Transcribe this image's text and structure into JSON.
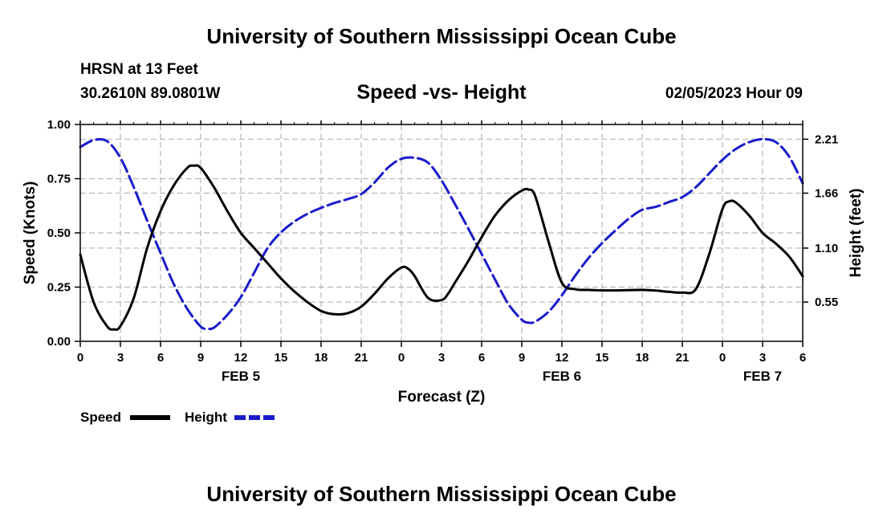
{
  "page": {
    "title_top": "University of Southern Mississippi Ocean Cube",
    "title_bottom": "University of Southern Mississippi Ocean Cube",
    "station_line1": "HRSN at 13 Feet",
    "station_line2": "30.2610N  89.0801W",
    "chart_title": "Speed -vs- Height",
    "timestamp": "02/05/2023 Hour 09"
  },
  "chart_data": {
    "type": "line",
    "title": "Speed -vs- Height",
    "xlabel": "Forecast (Z)",
    "ylabel": "Speed (Knots)",
    "y2label": "Height (feet)",
    "xlim": [
      0,
      54
    ],
    "ylim": [
      0,
      1
    ],
    "y2lim": [
      0.15,
      2.36
    ],
    "x_tick_values": [
      0,
      3,
      6,
      9,
      12,
      15,
      18,
      21,
      24,
      27,
      30,
      33,
      36,
      39,
      42,
      45,
      48,
      51,
      54
    ],
    "x_tick_labels": [
      "0",
      "3",
      "6",
      "9",
      "12",
      "15",
      "18",
      "21",
      "0",
      "3",
      "6",
      "9",
      "12",
      "15",
      "18",
      "21",
      "0",
      "3",
      "6"
    ],
    "date_labels": [
      {
        "x": 12,
        "label": "FEB 5"
      },
      {
        "x": 36,
        "label": "FEB 6"
      },
      {
        "x": 51,
        "label": "FEB 7"
      }
    ],
    "y_ticks": [
      0,
      0.25,
      0.5,
      0.75,
      1.0
    ],
    "y_tick_labels": [
      "0.00",
      "0.25",
      "0.50",
      "0.75",
      "1.00"
    ],
    "y2_ticks": [
      0.55,
      1.1,
      1.66,
      2.21
    ],
    "y2_tick_labels": [
      "0.55",
      "1.10",
      "1.66",
      "2.21"
    ],
    "grid": true,
    "legend_position": "bottom-left",
    "series": [
      {
        "name": "Speed",
        "axis": "left",
        "color": "#000000",
        "dash": "solid",
        "x": [
          0,
          1,
          2,
          2.5,
          3,
          4,
          5,
          6,
          7,
          8,
          8.5,
          9,
          10,
          11,
          12,
          13,
          14,
          15,
          16,
          17,
          18,
          19,
          20,
          21,
          22,
          23,
          24,
          24.5,
          25,
          26,
          27,
          27.5,
          28,
          29,
          30,
          31,
          32,
          33,
          33.5,
          34,
          35,
          36,
          37,
          38,
          39,
          40,
          41,
          42,
          43,
          44,
          45,
          46,
          47,
          48,
          48.5,
          49,
          50,
          51,
          52,
          53,
          54
        ],
        "values": [
          0.4,
          0.18,
          0.07,
          0.055,
          0.07,
          0.2,
          0.43,
          0.6,
          0.72,
          0.8,
          0.81,
          0.8,
          0.71,
          0.6,
          0.5,
          0.43,
          0.36,
          0.29,
          0.23,
          0.18,
          0.14,
          0.125,
          0.13,
          0.16,
          0.22,
          0.29,
          0.34,
          0.335,
          0.3,
          0.2,
          0.19,
          0.22,
          0.27,
          0.37,
          0.48,
          0.58,
          0.65,
          0.695,
          0.7,
          0.67,
          0.46,
          0.27,
          0.24,
          0.237,
          0.235,
          0.235,
          0.236,
          0.237,
          0.234,
          0.228,
          0.225,
          0.24,
          0.4,
          0.61,
          0.645,
          0.64,
          0.58,
          0.5,
          0.45,
          0.39,
          0.3
        ]
      },
      {
        "name": "Height",
        "axis": "right",
        "color": "#1a1acc",
        "dash": "dashed",
        "x": [
          0,
          1,
          2,
          3,
          4,
          5,
          6,
          7,
          8,
          9,
          9.5,
          10,
          11,
          12,
          13,
          14,
          15,
          16,
          17,
          18,
          19,
          20,
          21,
          22,
          23,
          24,
          25,
          26,
          27,
          28,
          29,
          30,
          31,
          32,
          33,
          33.5,
          34,
          35,
          36,
          37,
          38,
          39,
          40,
          41,
          42,
          43,
          44,
          45,
          46,
          47,
          48,
          49,
          50,
          51,
          52,
          53,
          54
        ],
        "values": [
          2.13,
          2.2,
          2.19,
          2.02,
          1.72,
          1.38,
          1.05,
          0.73,
          0.48,
          0.3,
          0.28,
          0.29,
          0.42,
          0.6,
          0.85,
          1.1,
          1.26,
          1.37,
          1.45,
          1.51,
          1.56,
          1.6,
          1.65,
          1.77,
          1.92,
          2.01,
          2.02,
          1.97,
          1.79,
          1.55,
          1.3,
          1.04,
          0.78,
          0.53,
          0.37,
          0.34,
          0.35,
          0.45,
          0.62,
          0.82,
          1.0,
          1.15,
          1.28,
          1.4,
          1.49,
          1.52,
          1.57,
          1.62,
          1.72,
          1.86,
          2.0,
          2.11,
          2.18,
          2.21,
          2.18,
          2.03,
          1.76
        ]
      }
    ]
  }
}
